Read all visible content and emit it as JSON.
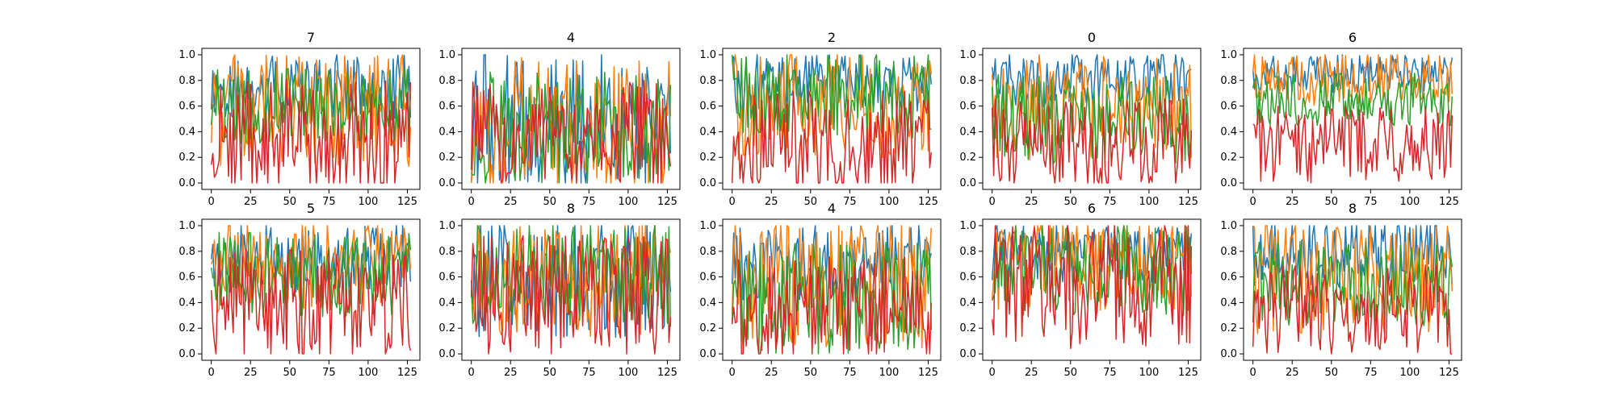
{
  "colors": {
    "series": [
      "#1f77b4",
      "#ff7f0e",
      "#2ca02c",
      "#d62728"
    ],
    "frame": "#000000",
    "background": "#ffffff"
  },
  "chart_data": [
    {
      "type": "line",
      "title": "7",
      "x_range": [
        0,
        127
      ],
      "xlim": [
        -6,
        133
      ],
      "ylim": [
        -0.05,
        1.05
      ],
      "xticks": [
        0,
        25,
        50,
        75,
        100,
        125
      ],
      "yticks": [
        0.0,
        0.2,
        0.4,
        0.6,
        0.8,
        1.0
      ],
      "grid": false,
      "series_count": 4,
      "levels": [
        0.75,
        0.58,
        0.6,
        0.33
      ],
      "spreads": [
        0.42,
        0.75,
        0.5,
        0.8
      ]
    },
    {
      "type": "line",
      "title": "4",
      "x_range": [
        0,
        127
      ],
      "xlim": [
        -6,
        133
      ],
      "ylim": [
        -0.05,
        1.05
      ],
      "xticks": [
        0,
        25,
        50,
        75,
        100,
        125
      ],
      "yticks": [
        0.0,
        0.2,
        0.4,
        0.6,
        0.8,
        1.0
      ],
      "grid": false,
      "series_count": 4,
      "levels": [
        0.5,
        0.45,
        0.42,
        0.38
      ],
      "spreads": [
        0.9,
        0.9,
        0.75,
        0.7
      ]
    },
    {
      "type": "line",
      "title": "2",
      "x_range": [
        0,
        127
      ],
      "xlim": [
        -6,
        133
      ],
      "ylim": [
        -0.05,
        1.05
      ],
      "xticks": [
        0,
        25,
        50,
        75,
        100,
        125
      ],
      "yticks": [
        0.0,
        0.2,
        0.4,
        0.6,
        0.8,
        1.0
      ],
      "grid": false,
      "series_count": 4,
      "levels": [
        0.78,
        0.6,
        0.68,
        0.3
      ],
      "spreads": [
        0.4,
        0.7,
        0.55,
        0.7
      ]
    },
    {
      "type": "line",
      "title": "0",
      "x_range": [
        0,
        127
      ],
      "xlim": [
        -6,
        133
      ],
      "ylim": [
        -0.05,
        1.05
      ],
      "xticks": [
        0,
        25,
        50,
        75,
        100,
        125
      ],
      "yticks": [
        0.0,
        0.2,
        0.4,
        0.6,
        0.8,
        1.0
      ],
      "grid": false,
      "series_count": 4,
      "levels": [
        0.8,
        0.6,
        0.5,
        0.3
      ],
      "spreads": [
        0.35,
        0.7,
        0.6,
        0.6
      ]
    },
    {
      "type": "line",
      "title": "6",
      "x_range": [
        0,
        127
      ],
      "xlim": [
        -6,
        133
      ],
      "ylim": [
        -0.05,
        1.05
      ],
      "xticks": [
        0,
        25,
        50,
        75,
        100,
        125
      ],
      "yticks": [
        0.0,
        0.2,
        0.4,
        0.6,
        0.8,
        1.0
      ],
      "grid": false,
      "series_count": 4,
      "levels": [
        0.85,
        0.8,
        0.65,
        0.3
      ],
      "spreads": [
        0.25,
        0.35,
        0.35,
        0.5
      ]
    },
    {
      "type": "line",
      "title": "5",
      "x_range": [
        0,
        127
      ],
      "xlim": [
        -6,
        133
      ],
      "ylim": [
        -0.05,
        1.05
      ],
      "xticks": [
        0,
        25,
        50,
        75,
        100,
        125
      ],
      "yticks": [
        0.0,
        0.2,
        0.4,
        0.6,
        0.8,
        1.0
      ],
      "grid": false,
      "series_count": 4,
      "levels": [
        0.75,
        0.68,
        0.62,
        0.38
      ],
      "spreads": [
        0.45,
        0.6,
        0.55,
        0.75
      ]
    },
    {
      "type": "line",
      "title": "8",
      "x_range": [
        0,
        127
      ],
      "xlim": [
        -6,
        133
      ],
      "ylim": [
        -0.05,
        1.05
      ],
      "xticks": [
        0,
        25,
        50,
        75,
        100,
        125
      ],
      "yticks": [
        0.0,
        0.2,
        0.4,
        0.6,
        0.8,
        1.0
      ],
      "grid": false,
      "series_count": 4,
      "levels": [
        0.6,
        0.6,
        0.62,
        0.45
      ],
      "spreads": [
        0.8,
        0.8,
        0.7,
        0.8
      ]
    },
    {
      "type": "line",
      "title": "4",
      "x_range": [
        0,
        127
      ],
      "xlim": [
        -6,
        133
      ],
      "ylim": [
        -0.05,
        1.05
      ],
      "xticks": [
        0,
        25,
        50,
        75,
        100,
        125
      ],
      "yticks": [
        0.0,
        0.2,
        0.4,
        0.6,
        0.8,
        1.0
      ],
      "grid": false,
      "series_count": 4,
      "levels": [
        0.72,
        0.55,
        0.42,
        0.35
      ],
      "spreads": [
        0.5,
        0.85,
        0.75,
        0.7
      ]
    },
    {
      "type": "line",
      "title": "6",
      "x_range": [
        0,
        127
      ],
      "xlim": [
        -6,
        133
      ],
      "ylim": [
        -0.05,
        1.05
      ],
      "xticks": [
        0,
        25,
        50,
        75,
        100,
        125
      ],
      "yticks": [
        0.0,
        0.2,
        0.4,
        0.6,
        0.8,
        1.0
      ],
      "grid": false,
      "series_count": 4,
      "levels": [
        0.78,
        0.7,
        0.65,
        0.55
      ],
      "spreads": [
        0.4,
        0.6,
        0.6,
        0.85
      ]
    },
    {
      "type": "line",
      "title": "8",
      "x_range": [
        0,
        127
      ],
      "xlim": [
        -6,
        133
      ],
      "ylim": [
        -0.05,
        1.05
      ],
      "xticks": [
        0,
        25,
        50,
        75,
        100,
        125
      ],
      "yticks": [
        0.0,
        0.2,
        0.4,
        0.6,
        0.8,
        1.0
      ],
      "grid": false,
      "series_count": 4,
      "levels": [
        0.78,
        0.6,
        0.55,
        0.35
      ],
      "spreads": [
        0.45,
        0.75,
        0.55,
        0.6
      ]
    }
  ]
}
